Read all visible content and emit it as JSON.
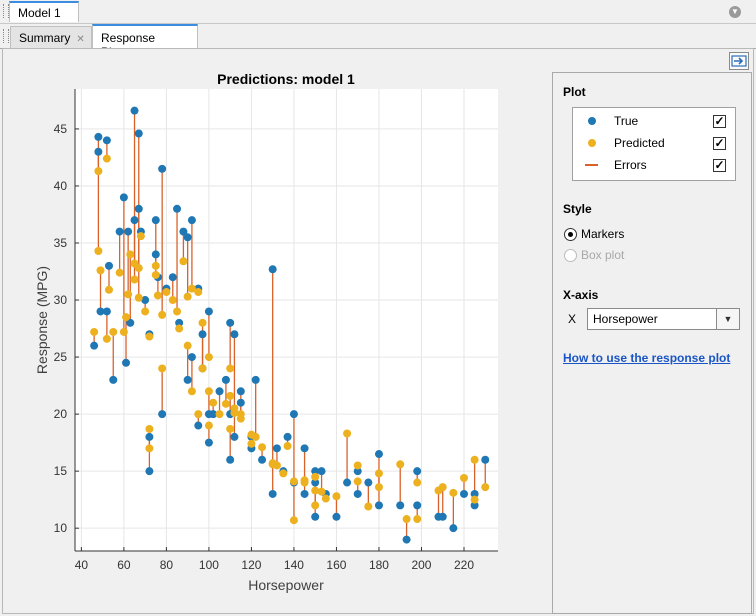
{
  "document_tab": {
    "label": "Model 1"
  },
  "tabs": [
    {
      "label": "Summary",
      "active": false
    },
    {
      "label": "Response Plot",
      "active": true
    }
  ],
  "sidebar": {
    "plot": {
      "title": "Plot",
      "items": [
        {
          "label": "True",
          "checked": true,
          "color": "#1f77b4"
        },
        {
          "label": "Predicted",
          "checked": true,
          "color": "#edb120"
        },
        {
          "label": "Errors",
          "checked": true,
          "color": "#d9622b"
        }
      ]
    },
    "style": {
      "title": "Style",
      "options": [
        {
          "label": "Markers",
          "selected": true,
          "enabled": true
        },
        {
          "label": "Box plot",
          "selected": false,
          "enabled": false
        }
      ]
    },
    "xaxis": {
      "title": "X-axis",
      "axis_letter": "X",
      "selected": "Horsepower"
    },
    "help_link": "How to use the response plot"
  },
  "chart_data": {
    "type": "scatter",
    "title": "Predictions: model 1",
    "xlabel": "Horsepower",
    "ylabel": "Response (MPG)",
    "xlim": [
      37,
      236
    ],
    "ylim": [
      8,
      48.5
    ],
    "xticks": [
      40,
      60,
      80,
      100,
      120,
      140,
      160,
      180,
      200,
      220
    ],
    "yticks": [
      10,
      15,
      20,
      25,
      30,
      35,
      40,
      45
    ],
    "grid": true,
    "colors": {
      "true": "#1f77b4",
      "predicted": "#edb120",
      "error": "#d9622b"
    },
    "series": [
      {
        "name": "True",
        "values": [
          [
            46,
            26
          ],
          [
            48,
            44.3
          ],
          [
            48,
            43
          ],
          [
            49,
            29
          ],
          [
            52,
            29
          ],
          [
            52,
            44
          ],
          [
            53,
            33
          ],
          [
            55,
            23
          ],
          [
            58,
            36
          ],
          [
            60,
            39
          ],
          [
            61,
            24.5
          ],
          [
            62,
            36
          ],
          [
            63,
            28
          ],
          [
            65,
            37
          ],
          [
            65,
            46.6
          ],
          [
            67,
            44.6
          ],
          [
            67,
            38
          ],
          [
            68,
            36
          ],
          [
            70,
            30
          ],
          [
            72,
            15
          ],
          [
            72,
            18
          ],
          [
            72,
            27
          ],
          [
            75,
            37
          ],
          [
            75,
            34
          ],
          [
            76,
            32
          ],
          [
            78,
            41.5
          ],
          [
            78,
            20
          ],
          [
            80,
            31
          ],
          [
            83,
            32
          ],
          [
            85,
            38
          ],
          [
            86,
            28
          ],
          [
            88,
            36
          ],
          [
            90,
            23
          ],
          [
            90,
            35.5
          ],
          [
            92,
            37
          ],
          [
            92,
            25
          ],
          [
            95,
            31
          ],
          [
            95,
            19
          ],
          [
            97,
            27
          ],
          [
            97,
            24
          ],
          [
            100,
            29
          ],
          [
            100,
            20
          ],
          [
            100,
            17.5
          ],
          [
            102,
            20
          ],
          [
            105,
            22
          ],
          [
            108,
            23
          ],
          [
            110,
            20
          ],
          [
            110,
            28
          ],
          [
            110,
            16
          ],
          [
            112,
            27
          ],
          [
            112,
            18
          ],
          [
            115,
            22
          ],
          [
            115,
            21
          ],
          [
            120,
            18
          ],
          [
            120,
            17
          ],
          [
            122,
            23
          ],
          [
            125,
            16
          ],
          [
            130,
            13
          ],
          [
            130,
            32.7
          ],
          [
            132,
            17
          ],
          [
            135,
            15
          ],
          [
            137,
            18
          ],
          [
            140,
            20
          ],
          [
            140,
            14
          ],
          [
            145,
            17
          ],
          [
            145,
            13
          ],
          [
            150,
            15
          ],
          [
            150,
            11
          ],
          [
            150,
            14
          ],
          [
            153,
            15
          ],
          [
            155,
            13
          ],
          [
            160,
            11
          ],
          [
            165,
            14
          ],
          [
            170,
            13
          ],
          [
            170,
            15
          ],
          [
            175,
            14
          ],
          [
            180,
            16.5
          ],
          [
            180,
            12
          ],
          [
            190,
            12
          ],
          [
            193,
            9
          ],
          [
            198,
            15
          ],
          [
            198,
            12
          ],
          [
            208,
            11
          ],
          [
            210,
            11
          ],
          [
            215,
            10
          ],
          [
            220,
            13
          ],
          [
            225,
            12
          ],
          [
            225,
            13
          ],
          [
            230,
            16
          ]
        ]
      },
      {
        "name": "Predicted",
        "values": [
          [
            46,
            27.2
          ],
          [
            48,
            41.3
          ],
          [
            48,
            34.3
          ],
          [
            49,
            32.6
          ],
          [
            52,
            26.6
          ],
          [
            52,
            42.4
          ],
          [
            53,
            30.9
          ],
          [
            55,
            27.2
          ],
          [
            58,
            32.4
          ],
          [
            60,
            27.2
          ],
          [
            61,
            28.5
          ],
          [
            62,
            30.5
          ],
          [
            63,
            34
          ],
          [
            65,
            31.8
          ],
          [
            65,
            33.2
          ],
          [
            67,
            30.2
          ],
          [
            67,
            32.8
          ],
          [
            68,
            35.6
          ],
          [
            70,
            29
          ],
          [
            72,
            18.7
          ],
          [
            72,
            17
          ],
          [
            72,
            26.8
          ],
          [
            75,
            32.2
          ],
          [
            75,
            33
          ],
          [
            76,
            30.4
          ],
          [
            78,
            28.7
          ],
          [
            78,
            24
          ],
          [
            80,
            30.7
          ],
          [
            83,
            30
          ],
          [
            85,
            29
          ],
          [
            86,
            27.5
          ],
          [
            88,
            33.4
          ],
          [
            90,
            26
          ],
          [
            90,
            30.3
          ],
          [
            92,
            31
          ],
          [
            92,
            22
          ],
          [
            95,
            30.7
          ],
          [
            95,
            20
          ],
          [
            97,
            24
          ],
          [
            97,
            28
          ],
          [
            100,
            25
          ],
          [
            100,
            22
          ],
          [
            100,
            19
          ],
          [
            102,
            21
          ],
          [
            105,
            20
          ],
          [
            108,
            20.9
          ],
          [
            110,
            21.6
          ],
          [
            110,
            24
          ],
          [
            110,
            18.7
          ],
          [
            112,
            20.5
          ],
          [
            112,
            20.1
          ],
          [
            115,
            19.6
          ],
          [
            115,
            20
          ],
          [
            120,
            17.4
          ],
          [
            120,
            18.2
          ],
          [
            122,
            18
          ],
          [
            125,
            17.1
          ],
          [
            130,
            15.6
          ],
          [
            130,
            15.7
          ],
          [
            132,
            15.5
          ],
          [
            135,
            14.8
          ],
          [
            137,
            17.2
          ],
          [
            140,
            14.1
          ],
          [
            140,
            10.7
          ],
          [
            145,
            14
          ],
          [
            145,
            14.2
          ],
          [
            150,
            12
          ],
          [
            150,
            14.5
          ],
          [
            150,
            13.3
          ],
          [
            153,
            13.2
          ],
          [
            155,
            12.6
          ],
          [
            160,
            12.8
          ],
          [
            165,
            18.3
          ],
          [
            170,
            14.1
          ],
          [
            170,
            15.5
          ],
          [
            175,
            11.9
          ],
          [
            180,
            13.6
          ],
          [
            180,
            14.8
          ],
          [
            190,
            15.6
          ],
          [
            193,
            10.8
          ],
          [
            198,
            14
          ],
          [
            198,
            10.8
          ],
          [
            208,
            13.3
          ],
          [
            210,
            13.6
          ],
          [
            215,
            13.1
          ],
          [
            220,
            14.4
          ],
          [
            225,
            12.5
          ],
          [
            225,
            16
          ],
          [
            230,
            13.6
          ]
        ]
      }
    ]
  }
}
